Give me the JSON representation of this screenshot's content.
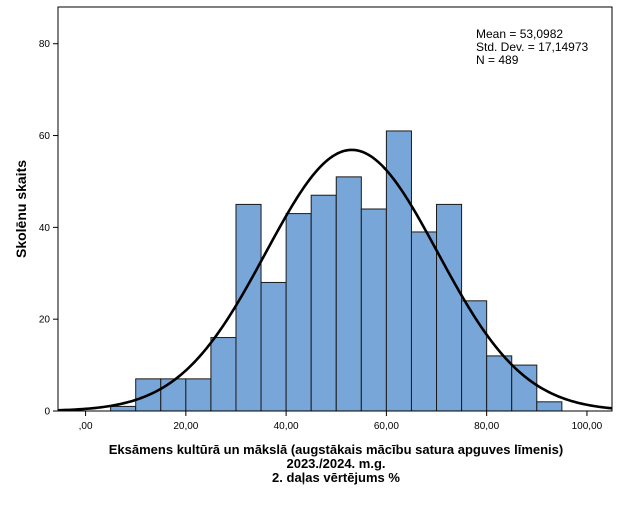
{
  "chart_data": {
    "type": "bar",
    "subtype": "histogram",
    "bins": [
      {
        "x0": 5,
        "x1": 10,
        "value": 1
      },
      {
        "x0": 10,
        "x1": 15,
        "value": 7
      },
      {
        "x0": 15,
        "x1": 20,
        "value": 7
      },
      {
        "x0": 20,
        "x1": 25,
        "value": 7
      },
      {
        "x0": 25,
        "x1": 30,
        "value": 16
      },
      {
        "x0": 30,
        "x1": 35,
        "value": 45
      },
      {
        "x0": 35,
        "x1": 40,
        "value": 28
      },
      {
        "x0": 40,
        "x1": 45,
        "value": 43
      },
      {
        "x0": 45,
        "x1": 50,
        "value": 47
      },
      {
        "x0": 50,
        "x1": 55,
        "value": 51
      },
      {
        "x0": 55,
        "x1": 60,
        "value": 44
      },
      {
        "x0": 60,
        "x1": 65,
        "value": 61
      },
      {
        "x0": 65,
        "x1": 70,
        "value": 39
      },
      {
        "x0": 70,
        "x1": 75,
        "value": 45
      },
      {
        "x0": 75,
        "x1": 80,
        "value": 24
      },
      {
        "x0": 80,
        "x1": 85,
        "value": 12
      },
      {
        "x0": 85,
        "x1": 90,
        "value": 10
      },
      {
        "x0": 90,
        "x1": 95,
        "value": 2
      }
    ],
    "normal_curve": {
      "mean": 53.0982,
      "sd": 17.14973,
      "n": 489,
      "bin_width": 5
    },
    "xlim": [
      -5.5,
      105
    ],
    "ylim": [
      0,
      88
    ],
    "x_ticks": [
      0,
      20,
      40,
      60,
      80,
      100
    ],
    "x_tick_labels": [
      ",00",
      "20,00",
      "40,00",
      "60,00",
      "80,00",
      "100,00"
    ],
    "y_ticks": [
      0,
      20,
      40,
      60,
      80
    ],
    "y_tick_labels": [
      "0",
      "20",
      "40",
      "60",
      "80"
    ],
    "xlabel_lines": [
      "Eksāmens kultūrā un mākslā (augstākais mācību satura apguves līmenis)",
      "2023./2024. m.g.",
      "2. daļas vērtējums %"
    ],
    "ylabel": "Skolēnu skaits",
    "stats_lines": [
      "Mean = 53,0982",
      "Std. Dev. = 17,14973",
      "N = 489"
    ],
    "bar_color": "#78a6d8",
    "bar_stroke": "#1a1a1a",
    "curve_color": "#000000",
    "grid": false
  }
}
